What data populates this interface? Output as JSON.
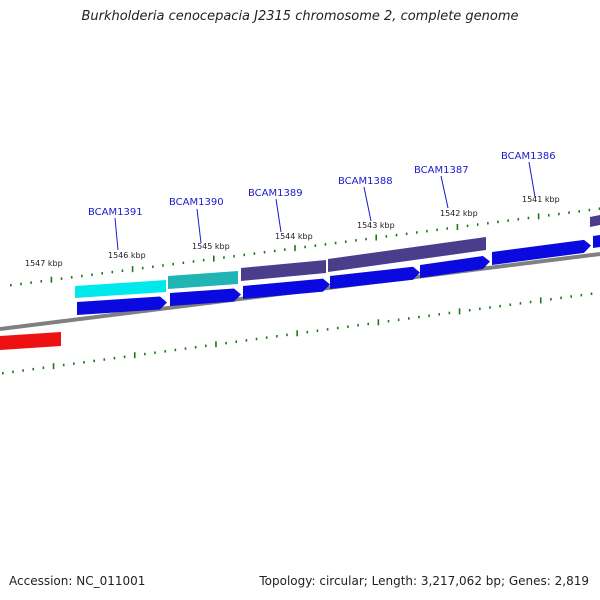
{
  "title": "Burkholderia cenocepacia J2315 chromosome 2, complete genome",
  "footer": {
    "accession": "Accession: NC_011001",
    "summary": "Topology: circular; Length: 3,217,062 bp; Genes: 2,819"
  },
  "colors": {
    "backbone": "#808080",
    "tick": "#1a7a1a",
    "gene_label": "#1a1acc",
    "cds_forward": "#0a0ae0",
    "cds_cyan": "#00e8ec",
    "cds_teal": "#20b4b4",
    "cds_purple": "#4a3e8c",
    "cds_red": "#ee1111"
  },
  "scale_labels": [
    "1547 kbp",
    "1546 kbp",
    "1545 kbp",
    "1544 kbp",
    "1543 kbp",
    "1542 kbp",
    "1541 kbp"
  ],
  "gene_labels": [
    "BCAM1391",
    "BCAM1390",
    "BCAM1389",
    "BCAM1388",
    "BCAM1387",
    "BCAM1386"
  ]
}
